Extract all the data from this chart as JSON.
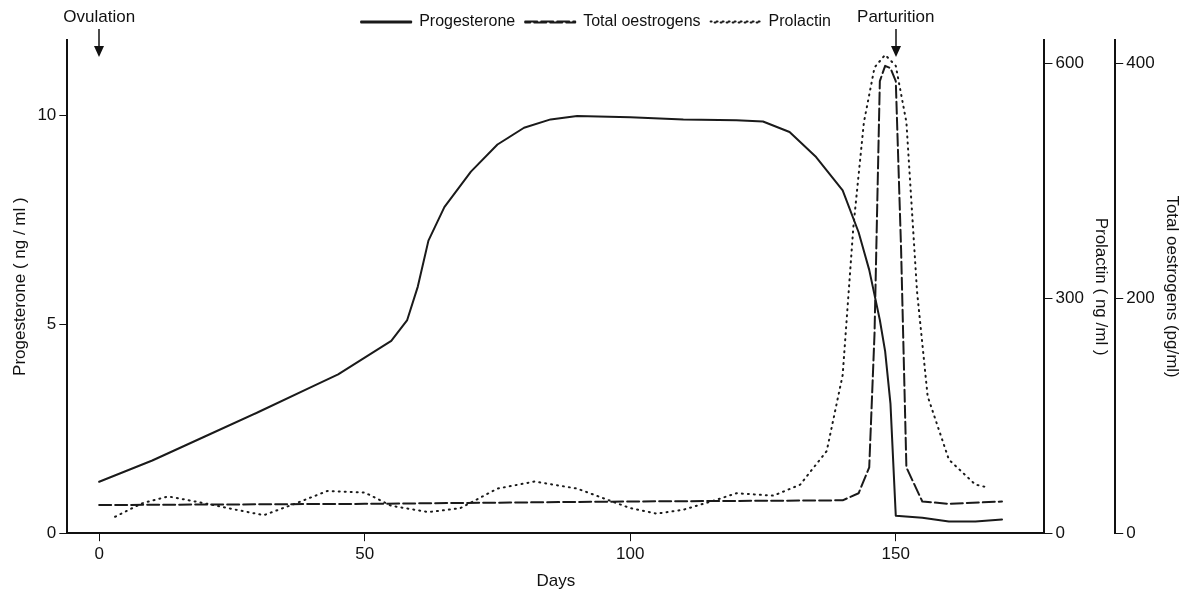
{
  "chart_data": {
    "type": "line",
    "xlabel": "Days",
    "ylabel": "Progesterone ( ng / ml )",
    "y2label": "Prolactin ( ng /ml )",
    "y3label": "Total oestrogens (pg/ml)",
    "xlim": [
      -6,
      178
    ],
    "xticks": [
      0,
      50,
      100,
      150
    ],
    "ylim": [
      0,
      11.8
    ],
    "yticks": [
      0,
      5,
      10
    ],
    "y2lim": [
      0,
      630
    ],
    "y2ticks": [
      0,
      300,
      600
    ],
    "y3lim": [
      0,
      420
    ],
    "y3ticks": [
      0,
      200,
      400
    ],
    "grid": false,
    "legend": "top",
    "marker": "none",
    "series": [
      {
        "name": "Progesterone",
        "color": "#1a1a1a",
        "line_style": "solid",
        "x": [
          0,
          10,
          20,
          30,
          40,
          45,
          50,
          55,
          58,
          60,
          62,
          65,
          70,
          75,
          80,
          85,
          90,
          100,
          110,
          120,
          125,
          130,
          135,
          140,
          143,
          145,
          147,
          148,
          149,
          150,
          155,
          160,
          165,
          170
        ],
        "values": [
          1.23,
          1.74,
          2.32,
          2.9,
          3.5,
          3.8,
          4.2,
          4.6,
          5.1,
          5.9,
          7.0,
          7.8,
          8.65,
          9.3,
          9.7,
          9.9,
          9.98,
          9.95,
          9.9,
          9.88,
          9.85,
          9.6,
          9.0,
          8.2,
          7.2,
          6.3,
          5.1,
          4.35,
          3.1,
          0.42,
          0.37,
          0.28,
          0.28,
          0.33
        ]
      },
      {
        "name": "Total oestrogens",
        "color": "#1a1a1a",
        "line_style": "dashed",
        "axis": "y3",
        "x": [
          0,
          50,
          100,
          140,
          143,
          145,
          146,
          147,
          148,
          149,
          150,
          151,
          152,
          155,
          160,
          170
        ],
        "values": [
          24,
          25,
          27,
          28,
          34,
          56,
          170,
          385,
          398,
          396,
          385,
          242,
          56,
          27,
          25,
          27
        ]
      },
      {
        "name": "Prolactin",
        "color": "#1a1a1a",
        "line_style": "dotted",
        "axis": "y2",
        "x": [
          3,
          8,
          13,
          20,
          25,
          31,
          37,
          43,
          50,
          55,
          62,
          68,
          75,
          82,
          90,
          100,
          105,
          110,
          115,
          120,
          127,
          132,
          137,
          140,
          142,
          144,
          146,
          148,
          150,
          152,
          154,
          156,
          160,
          165,
          167
        ],
        "values": [
          21,
          38,
          47,
          38,
          31,
          23,
          38,
          54,
          52,
          35,
          27,
          32,
          57,
          66,
          57,
          32,
          25,
          30,
          40,
          51,
          48,
          62,
          105,
          202,
          390,
          525,
          595,
          611,
          597,
          525,
          309,
          175,
          94,
          62,
          59
        ]
      }
    ],
    "annotations": [
      {
        "text": "Ovulation",
        "x": 0
      },
      {
        "text": "Parturition",
        "x": 150
      }
    ]
  }
}
